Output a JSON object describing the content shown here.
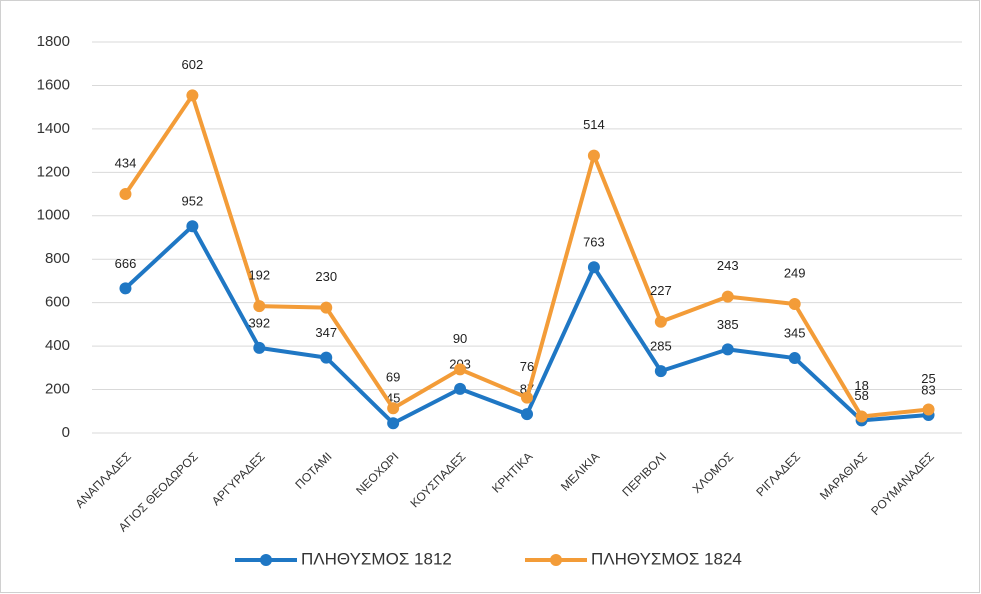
{
  "chart_data": {
    "type": "line",
    "stacked": true,
    "categories": [
      "ΑΝΑΠΛΑΔΕΣ",
      "ΑΓΙΟΣ ΘΕΟΔΩΡΟΣ",
      "ΑΡΓΥΡΑΔΕΣ",
      "ΠΟΤΑΜΙ",
      "ΝΕΟΧΩΡΙ",
      "ΚΟΥΣΠΑΔΕΣ",
      "ΚΡΗΤΙΚΑ",
      "ΜΕΛΙΚΙΑ",
      "ΠΕΡΙΒΟΛΙ",
      "ΧΛΟΜΟΣ",
      "ΡΙΓΛΑΔΕΣ",
      "ΜΑΡΑΘΙΑΣ",
      "ΡΟΥΜΑΝΑΔΕΣ"
    ],
    "series": [
      {
        "name": "ΠΛΗΘΥΣΜΟΣ 1812",
        "color": "#1f77c4",
        "values": [
          666,
          952,
          392,
          347,
          45,
          203,
          87,
          763,
          285,
          385,
          345,
          58,
          83
        ]
      },
      {
        "name": "ΠΛΗΘΥΣΜΟΣ 1824",
        "color": "#f39c38",
        "values": [
          434,
          602,
          192,
          230,
          69,
          90,
          76,
          514,
          227,
          243,
          249,
          18,
          25
        ]
      }
    ],
    "ylim": [
      0,
      1800
    ],
    "yticks": [
      0,
      200,
      400,
      600,
      800,
      1000,
      1200,
      1400,
      1600,
      1800
    ],
    "grid": true,
    "legend": "bottom"
  }
}
